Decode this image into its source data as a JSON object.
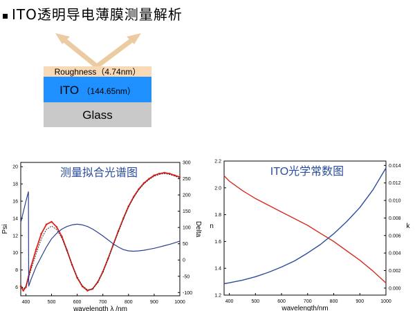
{
  "header": {
    "title": "ITO透明导电薄膜测量解析"
  },
  "diagram": {
    "colors": {
      "roughness": "#f7d9b6",
      "ito": "#1e90ff",
      "glass": "#c9c9c9",
      "arrow": "#eccba3"
    },
    "roughness_label": "Roughness（4.74nm）",
    "ito_label_main": "ITO",
    "ito_label_thickness": "（144.65nm）",
    "glass_label": "Glass"
  },
  "chart_data": [
    {
      "type": "line",
      "title": "测量拟合光谱图",
      "xlabel": "wavelength λ /nm",
      "ylabel": "Psi",
      "y2label": "Delta",
      "xlim": [
        380,
        1000
      ],
      "ylim": [
        5,
        20.5
      ],
      "y2lim": [
        -110,
        300
      ],
      "xticks": [
        "400",
        "500",
        "600",
        "700",
        "800",
        "900",
        "1000"
      ],
      "yticks": [
        "6",
        "8",
        "10",
        "12",
        "14",
        "16",
        "18",
        "20"
      ],
      "y2ticks": [
        "-100",
        "-50",
        "0",
        "50",
        "100",
        "150",
        "200",
        "250",
        "300"
      ],
      "colors": {
        "psi_measured": "#e0221c",
        "psi_fit": "#222222",
        "delta": "#2a3f8f"
      },
      "series": [
        {
          "axis": "left",
          "x": [
            380,
            390,
            400,
            410,
            420,
            440,
            460,
            480,
            500,
            520,
            540,
            560,
            580,
            600,
            620,
            640,
            660,
            680,
            700,
            720,
            740,
            760,
            780,
            800,
            820,
            840,
            860,
            880,
            900,
            920,
            940,
            960,
            980,
            1000
          ],
          "values": [
            6.1,
            5.6,
            6.0,
            7.2,
            8.4,
            10.4,
            12.2,
            13.3,
            13.6,
            13.0,
            11.9,
            10.3,
            8.6,
            7.1,
            6.1,
            5.6,
            5.8,
            6.6,
            7.8,
            9.3,
            10.9,
            12.5,
            14.0,
            15.4,
            16.5,
            17.4,
            18.1,
            18.6,
            19.0,
            19.2,
            19.3,
            19.2,
            19.0,
            18.8
          ]
        },
        {
          "axis": "left",
          "x": [
            380,
            390,
            400,
            410,
            420,
            440,
            460,
            480,
            500,
            520,
            540,
            560,
            580,
            600,
            620,
            640,
            660,
            680,
            700,
            720,
            740,
            760,
            780,
            800,
            820,
            840,
            860,
            880,
            900,
            920,
            940,
            960,
            980,
            1000
          ],
          "values": [
            6.2,
            5.8,
            6.1,
            7.0,
            8.0,
            9.9,
            11.6,
            12.7,
            13.1,
            12.7,
            11.7,
            10.2,
            8.6,
            7.2,
            6.2,
            5.7,
            5.8,
            6.5,
            7.7,
            9.2,
            10.8,
            12.4,
            13.9,
            15.3,
            16.4,
            17.3,
            18.0,
            18.5,
            18.9,
            19.1,
            19.2,
            19.1,
            18.9,
            18.7
          ]
        },
        {
          "axis": "right",
          "x": [
            380,
            400,
            410,
            411,
            420,
            440,
            460,
            480,
            500,
            520,
            540,
            560,
            580,
            600,
            620,
            640,
            660,
            680,
            700,
            720,
            740,
            760,
            780,
            800,
            820,
            840,
            860,
            880,
            900,
            920,
            940,
            960,
            980,
            1000
          ],
          "values": [
            115,
            180,
            210,
            -80,
            -60,
            -20,
            10,
            40,
            65,
            82,
            95,
            103,
            108,
            110,
            108,
            103,
            95,
            85,
            74,
            62,
            50,
            40,
            32,
            28,
            27,
            28,
            30,
            33,
            36,
            40,
            44,
            48,
            53,
            58
          ]
        }
      ]
    },
    {
      "type": "line",
      "title": "ITO光学常数图",
      "xlabel": "wavelength/nm",
      "ylabel": "n",
      "y2label": "k",
      "xlim": [
        380,
        1000
      ],
      "ylim": [
        1.2,
        2.2
      ],
      "y2lim": [
        -0.0008,
        0.0145
      ],
      "xticks": [
        "400",
        "500",
        "600",
        "700",
        "800",
        "900",
        "1000"
      ],
      "yticks": [
        "1.2",
        "1.4",
        "1.6",
        "1.8",
        "2.0",
        "2.2"
      ],
      "y2ticks": [
        "0.000",
        "0.002",
        "0.004",
        "0.006",
        "0.008",
        "0.010",
        "0.012",
        "0.014"
      ],
      "colors": {
        "n": "#d42d1f",
        "k": "#2a4d9b"
      },
      "series": [
        {
          "axis": "left",
          "x": [
            380,
            400,
            450,
            500,
            550,
            600,
            650,
            700,
            750,
            800,
            850,
            900,
            950,
            1000
          ],
          "values": [
            2.09,
            2.05,
            1.98,
            1.92,
            1.87,
            1.82,
            1.77,
            1.72,
            1.66,
            1.6,
            1.53,
            1.46,
            1.38,
            1.29
          ]
        },
        {
          "axis": "right",
          "x": [
            380,
            400,
            450,
            500,
            550,
            600,
            650,
            700,
            750,
            800,
            850,
            900,
            950,
            1000
          ],
          "values": [
            0.0005,
            0.0006,
            0.0009,
            0.0013,
            0.0018,
            0.0024,
            0.0031,
            0.004,
            0.005,
            0.0062,
            0.0076,
            0.0092,
            0.0112,
            0.0137
          ]
        }
      ]
    }
  ]
}
